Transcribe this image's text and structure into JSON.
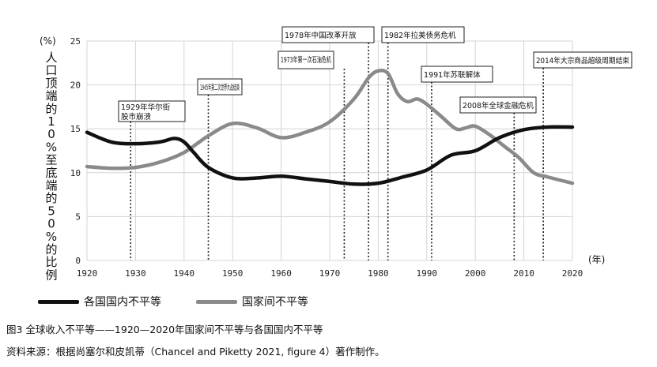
{
  "chart_data": {
    "type": "line",
    "ylabel": "人口顶端的10%至底端的50%的比例",
    "yunit": "(%)",
    "xunit": "(年)",
    "xlim": [
      1920,
      2020
    ],
    "ylim": [
      0,
      25
    ],
    "xticks": [
      "1920",
      "1930",
      "1940",
      "1950",
      "1960",
      "1970",
      "1980",
      "1990",
      "2000",
      "2010",
      "2020"
    ],
    "yticks": [
      "0",
      "5",
      "10",
      "15",
      "20",
      "25"
    ],
    "grid": true,
    "legend_position": "bottom",
    "series": [
      {
        "name": "各国国内不平等",
        "color": "#111111",
        "x": [
          1920,
          1925,
          1930,
          1935,
          1938,
          1940,
          1942,
          1945,
          1950,
          1955,
          1960,
          1965,
          1970,
          1975,
          1980,
          1985,
          1990,
          1995,
          2000,
          2005,
          2010,
          2015,
          2020
        ],
        "y": [
          14.6,
          13.5,
          13.3,
          13.5,
          13.9,
          13.5,
          12.3,
          10.6,
          9.4,
          9.4,
          9.6,
          9.3,
          9.0,
          8.7,
          8.8,
          9.5,
          10.3,
          12.0,
          12.5,
          14.0,
          14.9,
          15.2,
          15.2
        ]
      },
      {
        "name": "国家间不平等",
        "color": "#888888",
        "x": [
          1920,
          1925,
          1930,
          1935,
          1940,
          1945,
          1950,
          1955,
          1960,
          1965,
          1970,
          1975,
          1978,
          1980,
          1982,
          1984,
          1986,
          1988,
          1990,
          1993,
          1996,
          1998,
          2000,
          2003,
          2006,
          2009,
          2012,
          2015,
          2020
        ],
        "y": [
          10.7,
          10.5,
          10.6,
          11.2,
          12.3,
          14.2,
          15.6,
          15.1,
          14.0,
          14.6,
          15.8,
          18.4,
          20.8,
          21.6,
          21.3,
          19.0,
          18.1,
          18.4,
          17.8,
          16.4,
          15.0,
          15.1,
          15.3,
          14.3,
          13.0,
          11.7,
          10.0,
          9.5,
          8.8
        ]
      }
    ],
    "events": [
      {
        "year": 1929,
        "label": "1929年华尔街股市崩溃"
      },
      {
        "year": 1945,
        "label": "1945年第二次世界大战结束"
      },
      {
        "year": 1973,
        "label": "1973年第一次石油危机"
      },
      {
        "year": 1978,
        "label": "1978年中国改革开放"
      },
      {
        "year": 1982,
        "label": "1982年拉美债务危机"
      },
      {
        "year": 1991,
        "label": "1991年苏联解体"
      },
      {
        "year": 2008,
        "label": "2008年全球金融危机"
      },
      {
        "year": 2014,
        "label": "2014年大宗商品超级周期结束"
      }
    ]
  },
  "caption": "图3 全球收入不平等——1920—2020年国家间不平等与各国国内不平等",
  "source": "资料来源：根据尚塞尔和皮凯蒂（Chancel and Piketty 2021, figure 4）著作制作。"
}
